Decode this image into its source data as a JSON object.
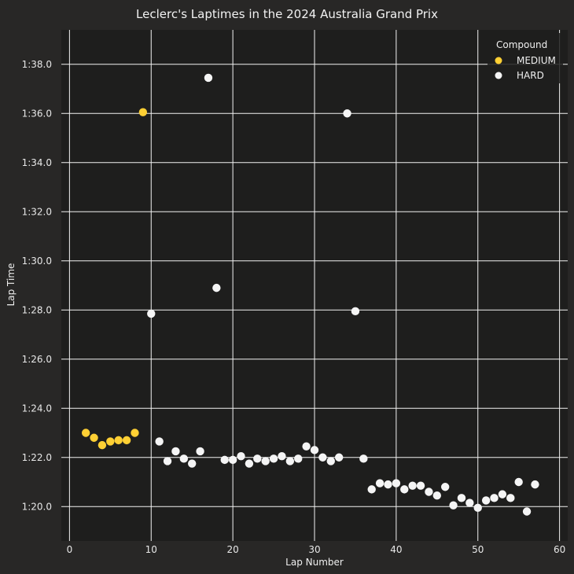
{
  "chart_data": {
    "type": "scatter",
    "title": "Leclerc's Laptimes in the 2024 Australia Grand Prix",
    "xlabel": "Lap Number",
    "ylabel": "Lap Time",
    "xlim": [
      -1,
      61
    ],
    "ylim": [
      78.6,
      99.4
    ],
    "x_ticks": [
      0,
      10,
      20,
      30,
      40,
      50,
      60
    ],
    "y_ticks": [
      80,
      82,
      84,
      86,
      88,
      90,
      92,
      94,
      96,
      98
    ],
    "y_tick_labels": [
      "1:20.0",
      "1:22.0",
      "1:24.0",
      "1:26.0",
      "1:28.0",
      "1:30.0",
      "1:32.0",
      "1:34.0",
      "1:36.0",
      "1:38.0"
    ],
    "grid": true,
    "legend": {
      "title": "Compound",
      "position": "top-right"
    },
    "series": [
      {
        "name": "MEDIUM",
        "color": "#ffd034",
        "points": [
          [
            2,
            83.0
          ],
          [
            3,
            82.8
          ],
          [
            4,
            82.5
          ],
          [
            5,
            82.65
          ],
          [
            6,
            82.7
          ],
          [
            7,
            82.7
          ],
          [
            8,
            83.0
          ],
          [
            9,
            96.05
          ]
        ]
      },
      {
        "name": "HARD",
        "color": "#f5f5f5",
        "points": [
          [
            10,
            87.85
          ],
          [
            11,
            82.65
          ],
          [
            12,
            81.85
          ],
          [
            13,
            82.25
          ],
          [
            14,
            81.95
          ],
          [
            15,
            81.75
          ],
          [
            16,
            82.25
          ],
          [
            17,
            97.45
          ],
          [
            18,
            88.9
          ],
          [
            19,
            81.9
          ],
          [
            20,
            81.9
          ],
          [
            21,
            82.05
          ],
          [
            22,
            81.75
          ],
          [
            23,
            81.95
          ],
          [
            24,
            81.85
          ],
          [
            25,
            81.95
          ],
          [
            26,
            82.05
          ],
          [
            27,
            81.85
          ],
          [
            28,
            81.95
          ],
          [
            29,
            82.45
          ],
          [
            30,
            82.3
          ],
          [
            31,
            82.0
          ],
          [
            32,
            81.85
          ],
          [
            33,
            82.0
          ],
          [
            34,
            96.0
          ],
          [
            35,
            87.95
          ],
          [
            36,
            81.95
          ],
          [
            37,
            80.7
          ],
          [
            38,
            80.95
          ],
          [
            39,
            80.9
          ],
          [
            40,
            80.95
          ],
          [
            41,
            80.7
          ],
          [
            42,
            80.85
          ],
          [
            43,
            80.85
          ],
          [
            44,
            80.6
          ],
          [
            45,
            80.45
          ],
          [
            46,
            80.8
          ],
          [
            47,
            80.05
          ],
          [
            48,
            80.35
          ],
          [
            49,
            80.15
          ],
          [
            50,
            79.95
          ],
          [
            51,
            80.25
          ],
          [
            52,
            80.35
          ],
          [
            53,
            80.5
          ],
          [
            54,
            80.35
          ],
          [
            55,
            81.0
          ],
          [
            56,
            79.8
          ],
          [
            57,
            80.9
          ]
        ]
      }
    ],
    "colors": {
      "figure_background": "#282726",
      "plot_background": "#1e1e1d",
      "grid": "#f2f2f2"
    }
  }
}
